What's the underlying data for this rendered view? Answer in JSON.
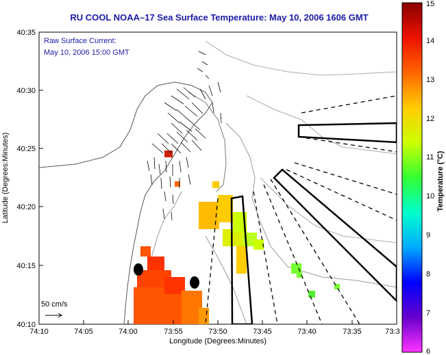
{
  "title": "RU COOL  NOAA–17  Sea Surface Temperature:  May 10, 2006 1606 GMT",
  "current_label_line1": "Raw Surface Current:",
  "current_label_line2": "May 10, 2006 15:00 GMT",
  "scale_label": "50 cm/s",
  "x_axis_label": "Longitude (Degrees:Minutes)",
  "y_axis_label": "Latitude (Degrees:Minutes)",
  "colorbar_label": "Temperature (°C)",
  "x_ticks": [
    "74:10",
    "74:05",
    "74:00",
    "73:55",
    "73:50",
    "73:45",
    "73:40",
    "73:35",
    "73:3"
  ],
  "y_ticks": [
    "40:35",
    "40:30",
    "40:25",
    "40:20",
    "40:15",
    "40:10"
  ],
  "colorbar_ticks": [
    "15",
    "14",
    "13",
    "12",
    "11",
    "10",
    "9",
    "8",
    "7",
    "6"
  ],
  "colors": {
    "title": "#1a1aa6",
    "land": "#ffffff",
    "contour": "#888888"
  }
}
